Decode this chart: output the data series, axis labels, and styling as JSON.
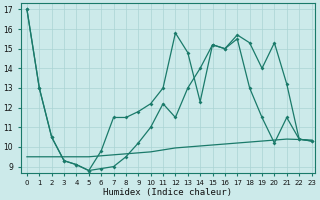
{
  "xlabel": "Humidex (Indice chaleur)",
  "background_color": "#cceaea",
  "grid_color": "#aad4d4",
  "line_color": "#1a7a6a",
  "xlim": [
    -0.5,
    23.3
  ],
  "ylim": [
    8.7,
    17.3
  ],
  "xticks": [
    0,
    1,
    2,
    3,
    4,
    5,
    6,
    7,
    8,
    9,
    10,
    11,
    12,
    13,
    14,
    15,
    16,
    17,
    18,
    19,
    20,
    21,
    22,
    23
  ],
  "yticks": [
    9,
    10,
    11,
    12,
    13,
    14,
    15,
    16,
    17
  ],
  "series1_x": [
    0,
    1,
    2,
    3,
    4,
    5,
    6,
    7,
    8,
    9,
    10,
    11,
    12,
    13,
    14,
    15,
    16,
    17,
    18,
    19,
    20,
    21,
    22,
    23
  ],
  "series1_y": [
    17.0,
    13.0,
    10.5,
    9.3,
    9.1,
    8.8,
    9.8,
    11.5,
    11.5,
    11.8,
    12.2,
    13.0,
    15.8,
    14.8,
    12.3,
    15.2,
    15.0,
    15.5,
    13.0,
    11.5,
    10.2,
    11.5,
    10.4,
    10.3
  ],
  "series2_x": [
    0,
    1,
    2,
    3,
    4,
    5,
    6,
    7,
    8,
    9,
    10,
    11,
    12,
    13,
    14,
    15,
    16,
    17,
    18,
    19,
    20,
    21,
    22,
    23
  ],
  "series2_y": [
    17.0,
    13.0,
    10.5,
    9.3,
    9.1,
    8.8,
    8.9,
    9.0,
    9.5,
    10.2,
    11.0,
    12.2,
    11.5,
    13.0,
    14.0,
    15.2,
    15.0,
    15.7,
    15.3,
    14.0,
    15.3,
    13.2,
    10.4,
    10.3
  ],
  "series3_x": [
    0,
    1,
    2,
    3,
    4,
    5,
    6,
    7,
    8,
    9,
    10,
    11,
    12,
    13,
    14,
    15,
    16,
    17,
    18,
    19,
    20,
    21,
    22,
    23
  ],
  "series3_y": [
    9.5,
    9.5,
    9.5,
    9.5,
    9.5,
    9.5,
    9.55,
    9.6,
    9.65,
    9.7,
    9.75,
    9.85,
    9.95,
    10.0,
    10.05,
    10.1,
    10.15,
    10.2,
    10.25,
    10.3,
    10.35,
    10.4,
    10.38,
    10.35
  ]
}
